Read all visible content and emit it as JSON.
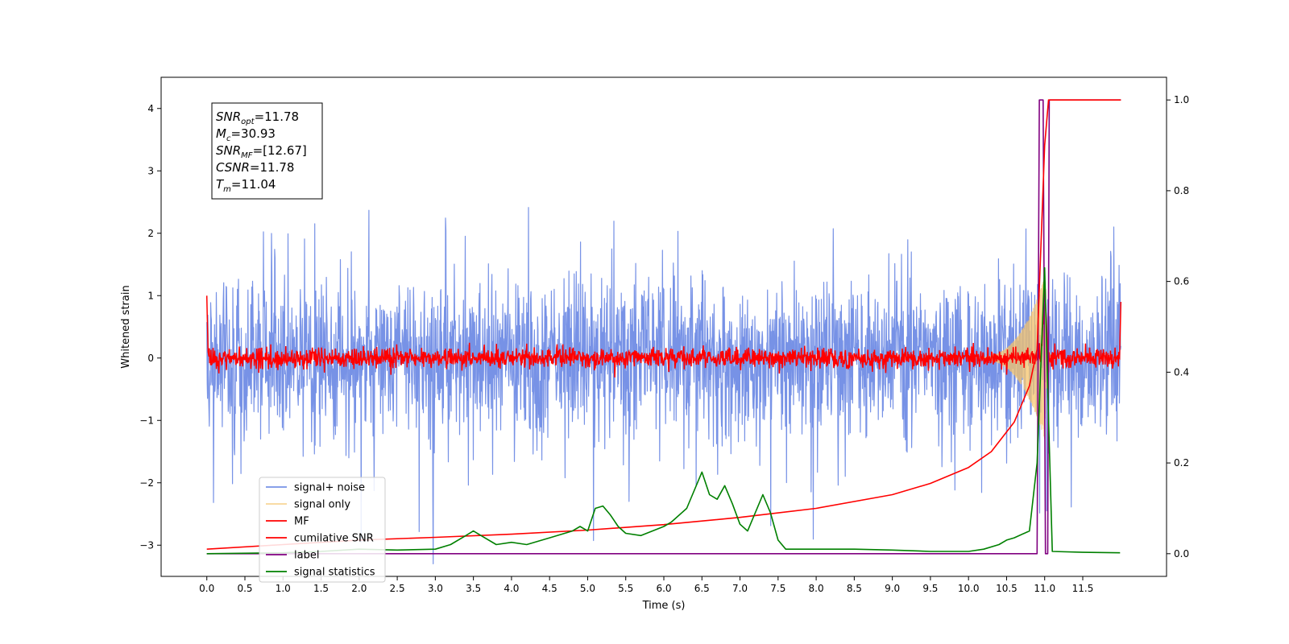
{
  "chart_data": {
    "type": "line",
    "xlabel": "Time (s)",
    "ylabel": "Whitened strain",
    "xlim": [
      -0.6,
      12.6
    ],
    "ylim": [
      -3.5,
      4.5
    ],
    "y2lim": [
      -0.05,
      1.05
    ],
    "xticks": [
      "0.0",
      "0.5",
      "1.0",
      "1.5",
      "2.0",
      "2.5",
      "3.0",
      "3.5",
      "4.0",
      "4.5",
      "5.0",
      "5.5",
      "6.0",
      "6.5",
      "7.0",
      "7.5",
      "8.0",
      "8.5",
      "9.0",
      "9.5",
      "10.0",
      "10.5",
      "11.0",
      "11.5"
    ],
    "yticks": [
      "4",
      "3",
      "2",
      "1",
      "0",
      "−1",
      "−2",
      "−3"
    ],
    "y2ticks": [
      "1.0",
      "0.8",
      "0.6",
      "0.4",
      "0.2",
      "0.0"
    ],
    "annotation": [
      {
        "base": "SNR",
        "sub": "opt",
        "value": "=11.78"
      },
      {
        "base": "M",
        "sub": "c",
        "value": "=30.93"
      },
      {
        "base": "SNR",
        "sub": "MF",
        "value": "=[12.67]"
      },
      {
        "base": "CSNR",
        "sub": "",
        "value": "=11.78"
      },
      {
        "base": "T",
        "sub": "m",
        "value": "=11.04"
      }
    ],
    "legend_position": "lower-left",
    "series": [
      {
        "name": "signal+ noise",
        "color": "#7792e6",
        "axis": "left",
        "description": "whitened noise plus signal, amplitude ~±1.5 with spikes to ±3.5"
      },
      {
        "name": "signal only",
        "color": "#f5c46b",
        "axis": "left",
        "description": "chirp growing from ~10.2 s, peak ~±1.3 near 11.0 s"
      },
      {
        "name": "MF",
        "color": "#ff0000",
        "axis": "left",
        "description": "matched-filter output ~±0.2 around 0, peak ~1 at 11.0 s"
      },
      {
        "name": "cumilative SNR",
        "color": "#ff0000",
        "axis": "right",
        "x": [
          0.0,
          1.0,
          2.0,
          3.0,
          4.0,
          5.0,
          6.0,
          7.0,
          8.0,
          9.0,
          9.5,
          10.0,
          10.3,
          10.6,
          10.8,
          10.9,
          11.0,
          11.05,
          11.1,
          12.0
        ],
        "y": [
          0.01,
          0.02,
          0.03,
          0.036,
          0.043,
          0.052,
          0.064,
          0.08,
          0.1,
          0.13,
          0.155,
          0.19,
          0.225,
          0.29,
          0.37,
          0.45,
          0.9,
          1.0,
          1.0,
          1.0
        ]
      },
      {
        "name": "label",
        "color": "#800080",
        "axis": "right",
        "x": [
          0.0,
          10.9,
          10.93,
          10.98,
          11.01,
          11.04,
          11.06,
          12.0
        ],
        "y": [
          0.0,
          0.0,
          1.0,
          1.0,
          0.0,
          0.0,
          1.0,
          1.0
        ]
      },
      {
        "name": "signal statistics",
        "color": "#008000",
        "axis": "right",
        "x": [
          0.0,
          1.0,
          1.5,
          2.0,
          2.5,
          3.0,
          3.2,
          3.4,
          3.5,
          3.6,
          3.8,
          4.0,
          4.2,
          4.5,
          4.8,
          4.9,
          5.0,
          5.1,
          5.2,
          5.3,
          5.4,
          5.5,
          5.7,
          6.0,
          6.1,
          6.3,
          6.5,
          6.6,
          6.7,
          6.8,
          6.9,
          7.0,
          7.1,
          7.3,
          7.4,
          7.5,
          7.6,
          8.0,
          8.5,
          9.0,
          9.5,
          10.0,
          10.2,
          10.4,
          10.5,
          10.6,
          10.8,
          10.9,
          11.0,
          11.05,
          11.1,
          11.5,
          11.99
        ],
        "y": [
          0.0,
          0.002,
          0.005,
          0.01,
          0.008,
          0.01,
          0.02,
          0.04,
          0.05,
          0.04,
          0.02,
          0.025,
          0.02,
          0.035,
          0.05,
          0.06,
          0.05,
          0.1,
          0.105,
          0.085,
          0.06,
          0.045,
          0.04,
          0.06,
          0.07,
          0.1,
          0.18,
          0.13,
          0.12,
          0.15,
          0.11,
          0.065,
          0.05,
          0.13,
          0.09,
          0.03,
          0.01,
          0.01,
          0.01,
          0.008,
          0.005,
          0.005,
          0.01,
          0.02,
          0.03,
          0.035,
          0.05,
          0.2,
          0.63,
          0.3,
          0.005,
          0.003,
          0.002
        ]
      }
    ]
  }
}
